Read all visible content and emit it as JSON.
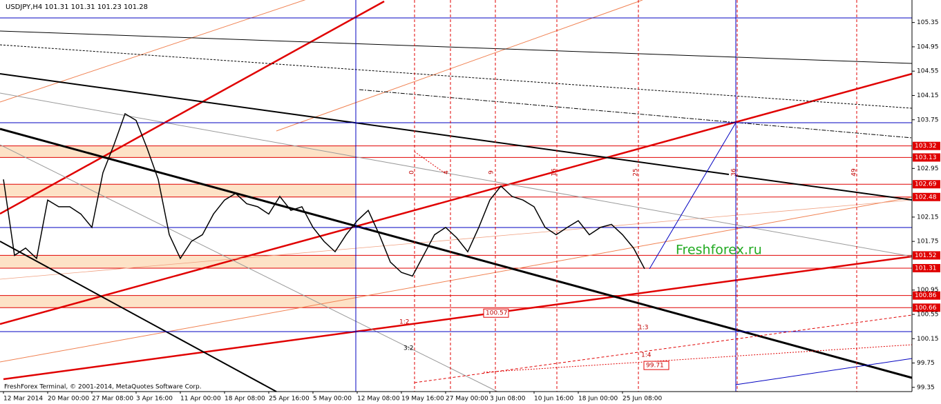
{
  "header": "USDJPY,H4  101.31 101.31 101.23 101.28",
  "footer": "FreshForex Terminal, © 2001-2014, MetaQuotes Software Corp.",
  "watermark": "Freshforex.ru",
  "chart_data": {
    "type": "line",
    "categories": [
      "12 Mar 2014",
      null,
      null,
      null,
      "20 Mar 00:00",
      null,
      null,
      null,
      "27 Mar 08:00",
      null,
      null,
      null,
      "3 Apr 16:00",
      null,
      null,
      null,
      "11 Apr 00:00",
      null,
      null,
      null,
      "18 Apr 08:00",
      null,
      null,
      null,
      "25 Apr 16:00",
      null,
      null,
      null,
      "5 May 00:00",
      null,
      null,
      null,
      "12 May 08:00",
      null,
      null,
      null,
      "19 May 16:00",
      null,
      null,
      null,
      "27 May 00:00",
      null,
      null,
      null,
      "3 Jun 08:00",
      null,
      null,
      null,
      "10 Jun 16:00",
      null,
      null,
      null,
      "18 Jun 00:00",
      null,
      null,
      null,
      "25 Jun 08:00",
      null,
      null
    ],
    "values": [
      102.77,
      101.52,
      101.64,
      101.47,
      102.43,
      102.32,
      102.32,
      102.2,
      101.98,
      102.88,
      103.34,
      103.85,
      103.74,
      103.28,
      102.77,
      101.86,
      101.47,
      101.75,
      101.86,
      102.2,
      102.43,
      102.54,
      102.37,
      102.32,
      102.2,
      102.49,
      102.26,
      102.32,
      101.98,
      101.75,
      101.58,
      101.86,
      102.09,
      102.26,
      101.86,
      101.41,
      101.24,
      101.18,
      101.52,
      101.86,
      101.98,
      101.81,
      101.58,
      101.98,
      102.43,
      102.66,
      102.49,
      102.43,
      102.32,
      101.98,
      101.86,
      101.98,
      102.09,
      101.86,
      101.98,
      102.03,
      101.86,
      101.64,
      101.3
    ],
    "color": "#000000",
    "ylim": [
      99.28,
      105.72
    ],
    "yticks": [
      105.35,
      104.95,
      104.55,
      104.15,
      103.75,
      102.95,
      102.15,
      101.75,
      100.95,
      100.55,
      100.15,
      99.75,
      99.35
    ],
    "levels": [
      103.32,
      103.13,
      102.69,
      102.48,
      101.52,
      101.31,
      100.86,
      100.66
    ],
    "level_color": "#e00000",
    "price_labels": [
      100.57,
      99.71
    ],
    "time_marks": [
      0,
      4,
      9,
      16,
      25,
      36,
      49
    ],
    "ratios": [
      "1:2",
      "3:2",
      "1:3",
      "1:4"
    ]
  }
}
